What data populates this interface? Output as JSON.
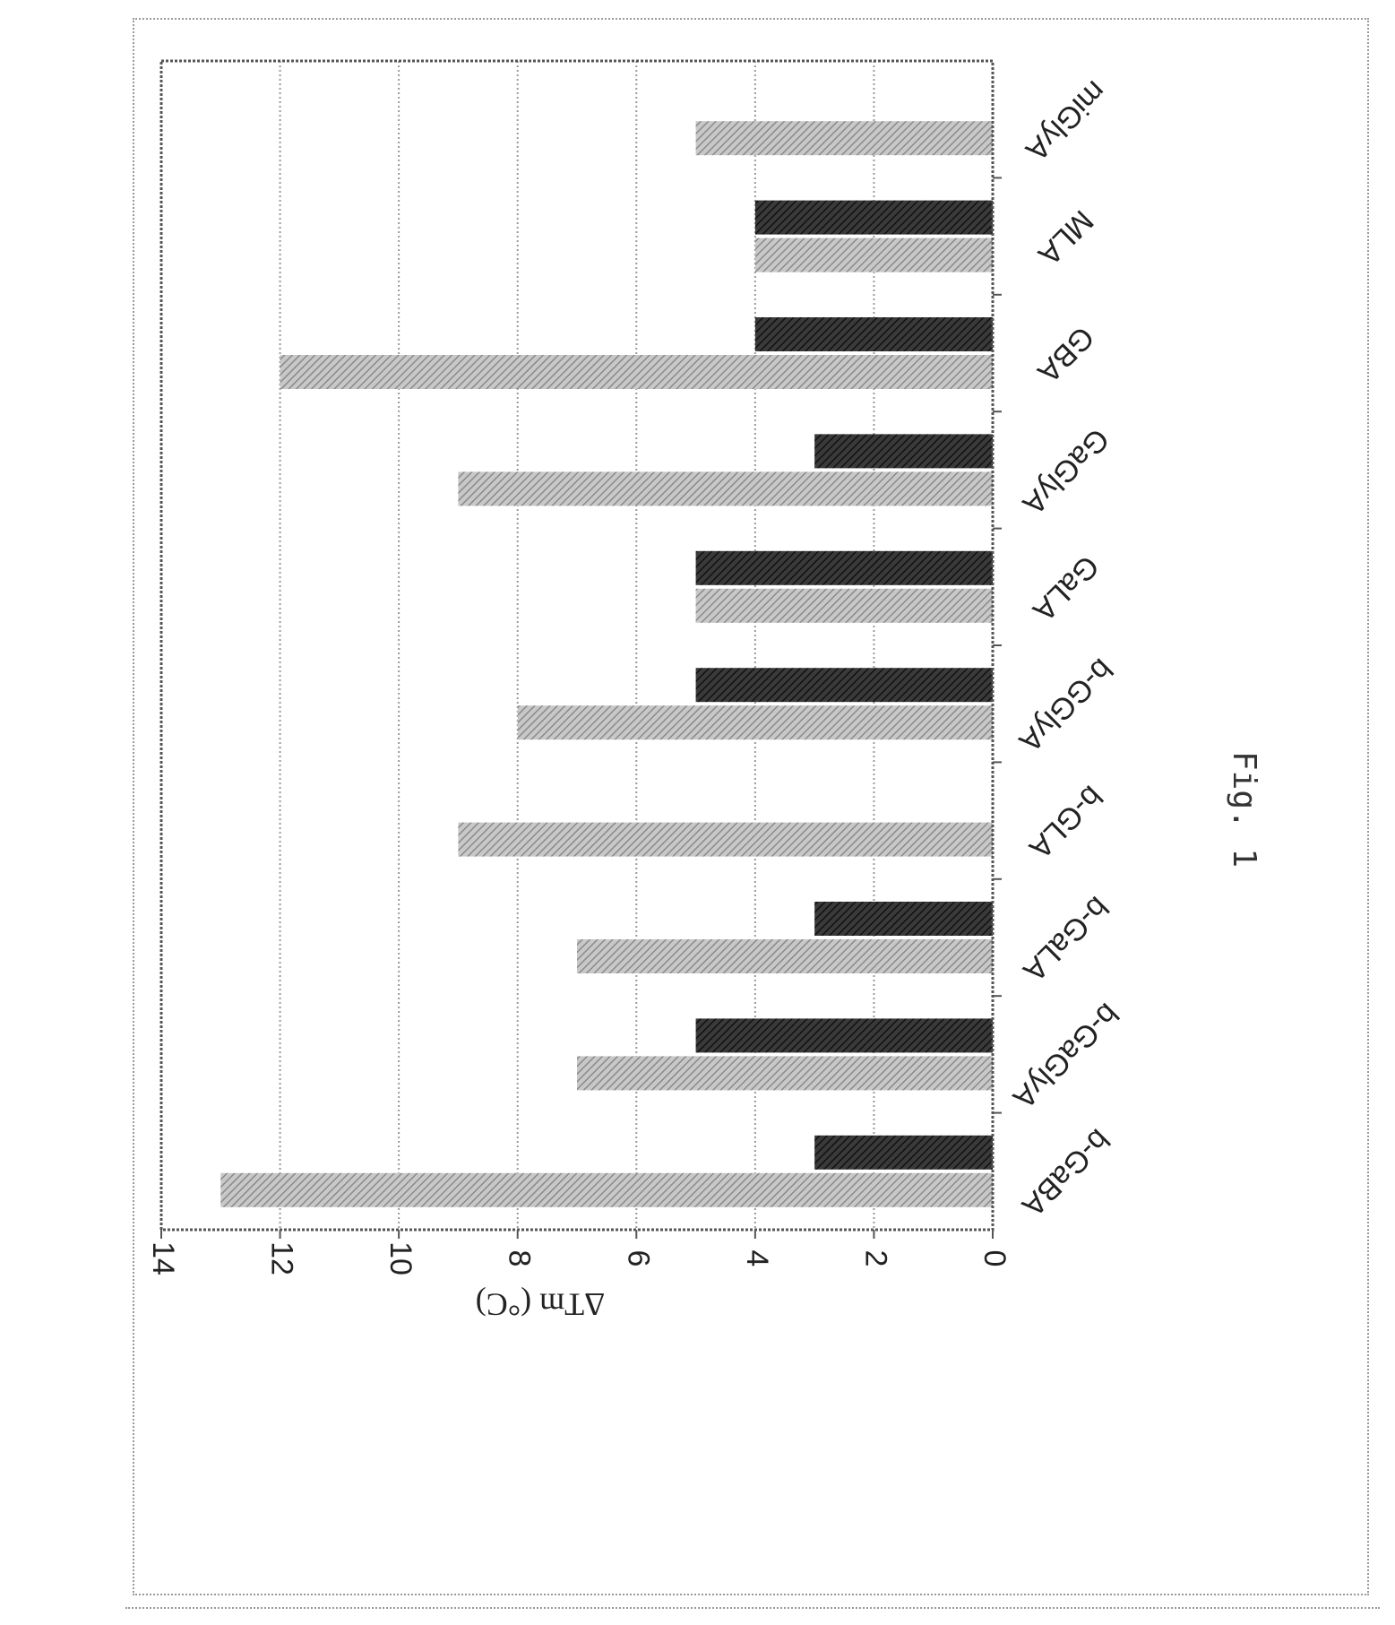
{
  "figure_label": "Fig. 1",
  "chart_data": {
    "type": "bar",
    "orientation": "rotated 90 degrees clockwise",
    "title": "",
    "ylabel": "ΔTm (°C)",
    "xlabel": "",
    "ylim": [
      0,
      14
    ],
    "yticks": [
      0,
      2,
      4,
      6,
      8,
      10,
      12,
      14
    ],
    "grid": true,
    "categories": [
      "miGlyA",
      "MLA",
      "GBA",
      "GaGlyA",
      "GaLA",
      "b-GGlyA",
      "b-GLA",
      "b-GaLA",
      "b-GaGlyA",
      "b-GaBA"
    ],
    "series": [
      {
        "color": "#2a2a2a",
        "values": [
          0,
          4,
          4,
          3,
          5,
          5,
          0,
          3,
          5,
          3
        ]
      },
      {
        "color": "#a8a8a8",
        "values": [
          5,
          4,
          12,
          9,
          5,
          8,
          9,
          7,
          7,
          13
        ]
      }
    ]
  }
}
